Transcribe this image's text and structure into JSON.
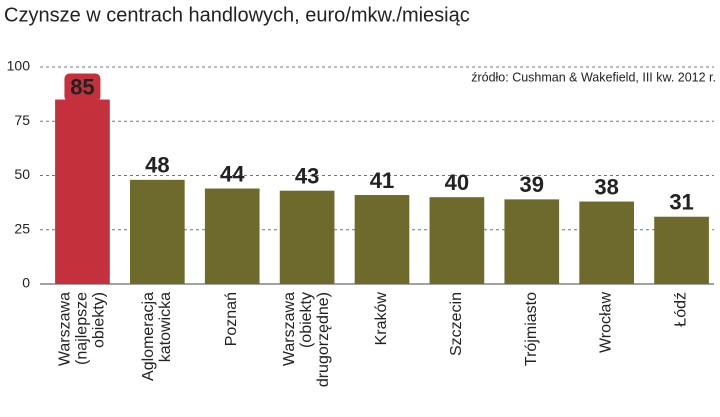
{
  "chart_data": {
    "type": "bar",
    "title": "Czynsze w centrach handlowych, euro/mkw./miesiąc",
    "source": "źródło: Cushman & Wakefield, III kw. 2012 r.",
    "categories": [
      "Warszawa (najlepsze obiekty)",
      "Aglomeracja katowicka",
      "Poznań",
      "Warszawa (obiekty drugorzędne)",
      "Kraków",
      "Szczecin",
      "Trójmiasto",
      "Wrocław",
      "Łódź"
    ],
    "values": [
      85,
      48,
      44,
      43,
      41,
      40,
      39,
      38,
      31
    ],
    "colors": [
      "#c4303c",
      "#6e6a2c",
      "#6e6a2c",
      "#6e6a2c",
      "#6e6a2c",
      "#6e6a2c",
      "#6e6a2c",
      "#6e6a2c",
      "#6e6a2c"
    ],
    "ylim": [
      0,
      100
    ],
    "yticks": [
      0,
      25,
      50,
      75,
      100
    ],
    "grid": true
  }
}
